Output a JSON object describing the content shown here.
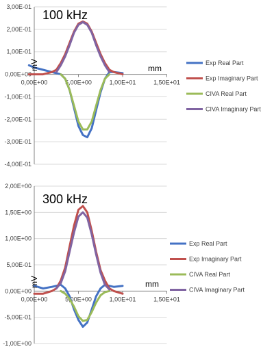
{
  "chart_data": [
    {
      "type": "line",
      "title": "100 kHz",
      "xlabel": "mm",
      "ylabel": "mV",
      "xlim": [
        0,
        15
      ],
      "ylim": [
        -0.4,
        0.3
      ],
      "y_ticks": [
        0.3,
        0.2,
        0.1,
        0.0,
        -0.1,
        -0.2,
        -0.3,
        -0.4
      ],
      "y_tick_labels": [
        "3,00E-01",
        "2,00E-01",
        "1,00E-01",
        "0,00E+00",
        "-1,00E-01",
        "-2,00E-01",
        "-3,00E-01",
        "-4,00E-01"
      ],
      "x_ticks": [
        0,
        5,
        10,
        15
      ],
      "x_tick_labels": [
        "0,00E+00",
        "5,00E+00",
        "1,00E+01",
        "1,50E+01"
      ],
      "grid": "horizontal",
      "legend": "right",
      "series": [
        {
          "name": "Exp Real Part",
          "color": "#4472C4",
          "x": [
            -0.6,
            0.0,
            1.0,
            2.0,
            3.0,
            3.5,
            4.0,
            4.5,
            5.0,
            5.5,
            6.0,
            6.5,
            7.0,
            7.5,
            8.0,
            8.5,
            9.0,
            10.0
          ],
          "y": [
            0.04,
            0.03,
            0.02,
            0.01,
            0.0,
            -0.02,
            -0.07,
            -0.15,
            -0.23,
            -0.27,
            -0.28,
            -0.24,
            -0.16,
            -0.08,
            -0.02,
            0.01,
            0.01,
            0.005
          ]
        },
        {
          "name": "Exp Imaginary Part",
          "color": "#C0504D",
          "x": [
            -0.6,
            0.0,
            1.0,
            2.0,
            2.5,
            3.0,
            3.5,
            4.0,
            4.5,
            5.0,
            5.5,
            6.0,
            6.5,
            7.0,
            7.5,
            8.0,
            8.5,
            9.0,
            10.0
          ],
          "y": [
            0.0,
            0.0,
            0.0,
            0.01,
            0.02,
            0.05,
            0.09,
            0.14,
            0.19,
            0.225,
            0.235,
            0.225,
            0.19,
            0.14,
            0.09,
            0.05,
            0.02,
            0.01,
            0.0
          ]
        },
        {
          "name": "CIVA Real Part",
          "color": "#9BBB59",
          "x": [
            3.0,
            3.5,
            4.0,
            4.5,
            5.0,
            5.5,
            6.0,
            6.5,
            7.0,
            7.5,
            8.0,
            8.5
          ],
          "y": [
            0.0,
            -0.02,
            -0.07,
            -0.14,
            -0.21,
            -0.245,
            -0.245,
            -0.21,
            -0.14,
            -0.07,
            -0.02,
            0.0
          ]
        },
        {
          "name": "CIVA Imaginary Part",
          "color": "#8064A2",
          "x": [
            2.5,
            3.0,
            3.5,
            4.0,
            4.5,
            5.0,
            5.5,
            6.0,
            6.5,
            7.0,
            7.5,
            8.0,
            8.5
          ],
          "y": [
            0.01,
            0.04,
            0.08,
            0.13,
            0.185,
            0.22,
            0.232,
            0.22,
            0.185,
            0.13,
            0.08,
            0.04,
            0.01
          ]
        }
      ]
    },
    {
      "type": "line",
      "title": "300 kHz",
      "xlabel": "mm",
      "ylabel": "mV",
      "xlim": [
        0,
        15
      ],
      "ylim": [
        -1.0,
        2.0
      ],
      "y_ticks": [
        2.0,
        1.5,
        1.0,
        0.5,
        0.0,
        -0.5,
        -1.0
      ],
      "y_tick_labels": [
        "2,00E+00",
        "1,50E+00",
        "1,00E+00",
        "5,00E-01",
        "0,00E+00",
        "-5,00E-01",
        "-1,00E+00"
      ],
      "x_ticks": [
        0,
        5,
        10,
        15
      ],
      "x_tick_labels": [
        "0,00E+00",
        "5,00E+00",
        "1,00E+01",
        "1,50E+01"
      ],
      "grid": "horizontal",
      "legend": "right",
      "series": [
        {
          "name": "Exp Real Part",
          "color": "#4472C4",
          "x": [
            0.0,
            1.0,
            2.0,
            3.0,
            3.5,
            4.0,
            4.5,
            5.0,
            5.5,
            6.0,
            6.5,
            7.0,
            7.5,
            8.0,
            8.5,
            9.0,
            10.0
          ],
          "y": [
            0.1,
            0.05,
            0.08,
            0.12,
            0.05,
            -0.1,
            -0.35,
            -0.55,
            -0.68,
            -0.6,
            -0.35,
            -0.1,
            0.05,
            0.12,
            0.1,
            0.08,
            0.1
          ]
        },
        {
          "name": "Exp Imaginary Part",
          "color": "#C0504D",
          "x": [
            0.0,
            1.0,
            2.0,
            2.5,
            3.0,
            3.5,
            4.0,
            4.5,
            5.0,
            5.5,
            6.0,
            6.5,
            7.0,
            7.5,
            8.0,
            8.5,
            9.0,
            10.0
          ],
          "y": [
            -0.05,
            -0.05,
            0.0,
            0.05,
            0.2,
            0.45,
            0.85,
            1.25,
            1.55,
            1.62,
            1.5,
            1.15,
            0.75,
            0.4,
            0.2,
            0.05,
            0.0,
            -0.05
          ]
        },
        {
          "name": "CIVA Real Part",
          "color": "#9BBB59",
          "x": [
            3.0,
            3.5,
            4.0,
            4.5,
            5.0,
            5.5,
            6.0,
            6.5,
            7.0,
            7.5,
            8.0,
            8.5
          ],
          "y": [
            0.0,
            -0.05,
            -0.15,
            -0.3,
            -0.48,
            -0.57,
            -0.55,
            -0.4,
            -0.22,
            -0.08,
            -0.02,
            0.0
          ]
        },
        {
          "name": "CIVA Imaginary Part",
          "color": "#8064A2",
          "x": [
            2.5,
            3.0,
            3.5,
            4.0,
            4.5,
            5.0,
            5.5,
            6.0,
            6.5,
            7.0,
            7.5,
            8.0,
            8.5
          ],
          "y": [
            0.05,
            0.15,
            0.38,
            0.75,
            1.12,
            1.42,
            1.5,
            1.4,
            1.08,
            0.7,
            0.35,
            0.12,
            0.03
          ]
        }
      ]
    }
  ]
}
